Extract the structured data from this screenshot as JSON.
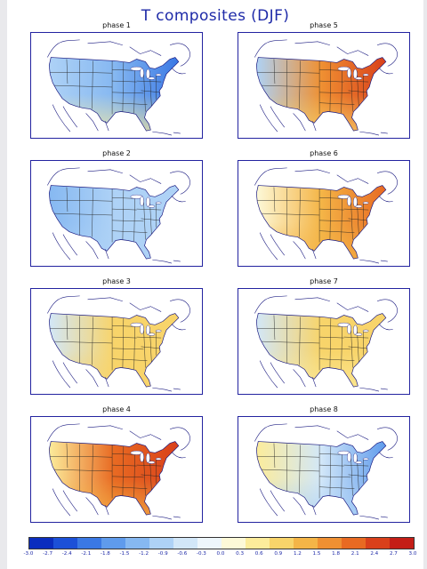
{
  "title": "T composites (DJF)",
  "colors": {
    "frame": "#2323a0",
    "palette": [
      "#0b2dbf",
      "#1c50d8",
      "#3a78e4",
      "#5f9bec",
      "#86b8f1",
      "#aed2f6",
      "#d2e7f8",
      "#eef6fb",
      "#fdf9d8",
      "#fcec9b",
      "#f8d46a",
      "#f4b547",
      "#ef9032",
      "#e86a22",
      "#d9401b",
      "#c41e17"
    ]
  },
  "chart_data": {
    "type": "heatmap",
    "title": "T composites (DJF)",
    "colorbar": {
      "ticks": [
        "-3.0",
        "-2.7",
        "-2.4",
        "-2.1",
        "-1.8",
        "-1.5",
        "-1.2",
        "-0.9",
        "-0.6",
        "-0.3",
        "0.0",
        "0.3",
        "0.6",
        "0.9",
        "1.2",
        "1.5",
        "1.8",
        "2.1",
        "2.4",
        "2.7",
        "3.0"
      ],
      "range": [
        -3.0,
        3.0
      ]
    },
    "panels": [
      {
        "title": "phase 1",
        "west": -1.0,
        "central": -1.4,
        "east": -2.2,
        "south": 0.4
      },
      {
        "title": "phase 2",
        "west": -1.4,
        "central": -1.0,
        "east": -1.1,
        "south": -0.8
      },
      {
        "title": "phase 3",
        "west": -0.4,
        "central": 0.9,
        "east": 1.1,
        "south": 0.8
      },
      {
        "title": "phase 4",
        "west": 0.6,
        "central": 2.0,
        "east": 2.3,
        "south": 1.2
      },
      {
        "title": "phase 5",
        "west": -1.0,
        "central": 1.6,
        "east": 2.6,
        "south": 1.0
      },
      {
        "title": "phase 6",
        "west": 0.1,
        "central": 1.4,
        "east": 2.2,
        "south": 1.3
      },
      {
        "title": "phase 7",
        "west": -0.5,
        "central": 0.8,
        "east": 1.0,
        "south": 0.6
      },
      {
        "title": "phase 8",
        "west": 0.5,
        "central": -0.6,
        "east": -1.6,
        "south": -0.8
      }
    ]
  }
}
